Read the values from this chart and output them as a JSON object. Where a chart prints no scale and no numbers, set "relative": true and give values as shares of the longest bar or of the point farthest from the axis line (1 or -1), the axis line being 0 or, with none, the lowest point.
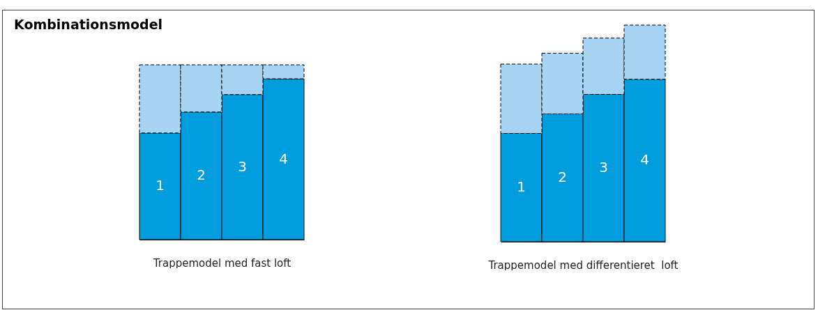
{
  "chart_data": [
    {
      "type": "bar",
      "title": "Kombinationsmodel",
      "xlabel": "Trappemodel med fast loft",
      "categories": [
        "1",
        "2",
        "3",
        "4"
      ],
      "stacked": true,
      "relative": true,
      "series": [
        {
          "color": "#009ddd",
          "values": [
            0.61,
            0.73,
            0.83,
            0.92
          ]
        },
        {
          "color": "#a6d4f2",
          "values": [
            0.39,
            0.27,
            0.17,
            0.08
          ]
        }
      ]
    },
    {
      "type": "bar",
      "xlabel": "Trappemodel med differentieret  loft",
      "categories": [
        "1",
        "2",
        "3",
        "4"
      ],
      "stacked": true,
      "relative": true,
      "series": [
        {
          "color": "#009ddd",
          "values": [
            0.5,
            0.59,
            0.68,
            0.75
          ]
        },
        {
          "color": "#a6d4f2",
          "values": [
            0.32,
            0.28,
            0.26,
            0.25
          ]
        }
      ]
    }
  ]
}
